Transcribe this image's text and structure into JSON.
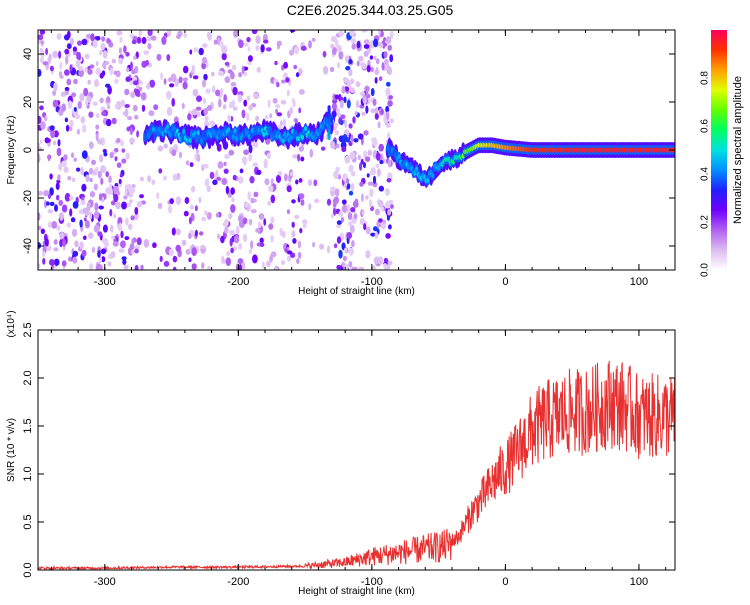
{
  "title": "C2E6.2025.344.03.25.G05",
  "chart_data": [
    {
      "type": "heatmap",
      "xlabel": "Height of straight line (km)",
      "ylabel": "Frequency (Hz)",
      "xlim": [
        -350,
        127
      ],
      "ylim": [
        -50,
        50
      ],
      "x_ticks": [
        -300,
        -200,
        -100,
        0,
        100
      ],
      "x_tick_labels": [
        "-300",
        "-200",
        "-100",
        "0",
        "100"
      ],
      "y_ticks": [
        -40,
        -20,
        0,
        20,
        40
      ],
      "y_tick_labels": [
        "-40",
        "-20",
        "0",
        "20",
        "40"
      ],
      "grid": false,
      "colorbar": {
        "label": "Normalized spectral amplitude",
        "range": [
          0,
          1
        ],
        "ticks": [
          0.0,
          0.2,
          0.4,
          0.6,
          0.8
        ],
        "tick_labels": [
          "0.0",
          "0.2",
          "0.4",
          "0.6",
          "0.8"
        ],
        "colormap": [
          "#ffffff",
          "#dcbcf2",
          "#b060f0",
          "#7000ff",
          "#2020ff",
          "#0090ff",
          "#00e0e0",
          "#00ff60",
          "#60ff00",
          "#e0ff00",
          "#ffa000",
          "#ff3000",
          "#ff0060"
        ]
      },
      "ridge": [
        {
          "x": -270,
          "y": 7,
          "amp": 0.38
        },
        {
          "x": -255,
          "y": 8,
          "amp": 0.42
        },
        {
          "x": -240,
          "y": 6,
          "amp": 0.45
        },
        {
          "x": -225,
          "y": 5,
          "amp": 0.4
        },
        {
          "x": -210,
          "y": 7,
          "amp": 0.42
        },
        {
          "x": -195,
          "y": 6,
          "amp": 0.4
        },
        {
          "x": -180,
          "y": 8,
          "amp": 0.45
        },
        {
          "x": -165,
          "y": 5,
          "amp": 0.42
        },
        {
          "x": -150,
          "y": 7,
          "amp": 0.48
        },
        {
          "x": -140,
          "y": 7,
          "amp": 0.45
        },
        {
          "x": -132,
          "y": 12,
          "amp": 0.38
        },
        {
          "x": -85,
          "y": 0,
          "amp": 0.4
        },
        {
          "x": -80,
          "y": -4,
          "amp": 0.45
        },
        {
          "x": -72,
          "y": -6,
          "amp": 0.45
        },
        {
          "x": -65,
          "y": -10,
          "amp": 0.48
        },
        {
          "x": -58,
          "y": -12,
          "amp": 0.45
        },
        {
          "x": -50,
          "y": -6,
          "amp": 0.48
        },
        {
          "x": -40,
          "y": -4,
          "amp": 0.55
        },
        {
          "x": -30,
          "y": -1,
          "amp": 0.62
        },
        {
          "x": -20,
          "y": 2,
          "amp": 0.75
        },
        {
          "x": -10,
          "y": 2,
          "amp": 0.8
        },
        {
          "x": 0,
          "y": 1,
          "amp": 0.85
        },
        {
          "x": 20,
          "y": 0,
          "amp": 0.92
        },
        {
          "x": 50,
          "y": 0,
          "amp": 0.95
        },
        {
          "x": 80,
          "y": 0,
          "amp": 0.95
        },
        {
          "x": 110,
          "y": 0,
          "amp": 0.95
        },
        {
          "x": 127,
          "y": 0,
          "amp": 0.95
        }
      ],
      "noise_regions": [
        {
          "x": [
            -350,
            -275
          ],
          "density": 0.65
        },
        {
          "x": [
            -275,
            -230
          ],
          "density": 0.3
        },
        {
          "x": [
            -230,
            -150
          ],
          "density": 0.45
        },
        {
          "x": [
            -150,
            -130
          ],
          "density": 0.1
        },
        {
          "x": [
            -130,
            -85
          ],
          "density": 0.8
        }
      ]
    },
    {
      "type": "line",
      "xlabel": "Height of straight line (km)",
      "ylabel": "SNR (10 * v/v)",
      "y_scale_label": "(x10⁴)",
      "xlim": [
        -350,
        127
      ],
      "ylim": [
        0,
        2.5
      ],
      "x_ticks": [
        -300,
        -200,
        -100,
        0,
        100
      ],
      "x_tick_labels": [
        "-300",
        "-200",
        "-100",
        "0",
        "100"
      ],
      "y_ticks": [
        0,
        0.5,
        1.0,
        1.5,
        2.0,
        2.5
      ],
      "y_tick_labels": [
        "0.0",
        "0.5",
        "1.0",
        "1.5",
        "2.0",
        "2.5"
      ],
      "grid": false,
      "color": "#e83030",
      "series": [
        {
          "x": [
            -350,
            -300,
            -250,
            -200,
            -150,
            -120,
            -100,
            -80,
            -60,
            -45,
            -35,
            -25,
            -15,
            -5,
            0,
            10,
            20,
            30,
            40,
            50,
            60,
            70,
            80,
            90,
            100,
            110,
            127
          ],
          "values": [
            0.02,
            0.02,
            0.03,
            0.03,
            0.04,
            0.08,
            0.14,
            0.18,
            0.22,
            0.25,
            0.35,
            0.6,
            0.8,
            1.0,
            1.05,
            1.25,
            1.45,
            1.55,
            1.6,
            1.65,
            1.65,
            1.7,
            1.75,
            1.7,
            1.6,
            1.6,
            1.6
          ]
        }
      ]
    }
  ]
}
